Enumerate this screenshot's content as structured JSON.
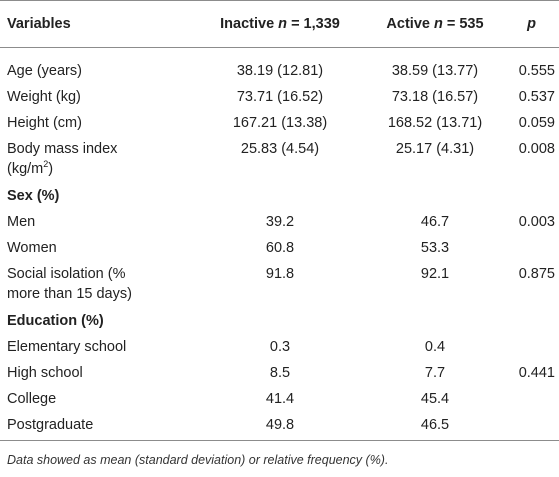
{
  "table": {
    "headers": {
      "variables": "Variables",
      "inactive_label": "Inactive",
      "inactive_n_var": "n",
      "inactive_n_val": "= 1,339",
      "active_label": "Active",
      "active_n_var": "n",
      "active_n_val": "= 535",
      "p": "p"
    },
    "rows": {
      "age": {
        "label": "Age (years)",
        "inactive": "38.19 (12.81)",
        "active": "38.59 (13.77)",
        "p": "0.555"
      },
      "weight": {
        "label": "Weight (kg)",
        "inactive": "73.71 (16.52)",
        "active": "73.18 (16.57)",
        "p": "0.537"
      },
      "height": {
        "label": "Height (cm)",
        "inactive": "167.21 (13.38)",
        "active": "168.52 (13.71)",
        "p": "0.059"
      },
      "bmi": {
        "label_line1": "Body mass index",
        "label_line2_pre": "(kg/m",
        "label_sup": "2",
        "label_line2_post": ")",
        "inactive": "25.83 (4.54)",
        "active": "25.17 (4.31)",
        "p": "0.008"
      },
      "sex_section": {
        "label": "Sex (%)"
      },
      "men": {
        "label": "Men",
        "inactive": "39.2",
        "active": "46.7",
        "p": "0.003"
      },
      "women": {
        "label": "Women",
        "inactive": "60.8",
        "active": "53.3",
        "p": ""
      },
      "isolation": {
        "label_line1": "Social isolation (%",
        "label_line2": "more than 15 days)",
        "inactive": "91.8",
        "active": "92.1",
        "p": "0.875"
      },
      "education_section": {
        "label": "Education (%)"
      },
      "elementary": {
        "label": "Elementary school",
        "inactive": "0.3",
        "active": "0.4",
        "p": ""
      },
      "highschool": {
        "label": "High school",
        "inactive": "8.5",
        "active": "7.7",
        "p": "0.441"
      },
      "college": {
        "label": "College",
        "inactive": "41.4",
        "active": "45.4",
        "p": ""
      },
      "postgraduate": {
        "label": "Postgraduate",
        "inactive": "49.8",
        "active": "46.5",
        "p": ""
      }
    },
    "footnote": "Data showed as mean (standard deviation) or relative frequency (%)."
  }
}
